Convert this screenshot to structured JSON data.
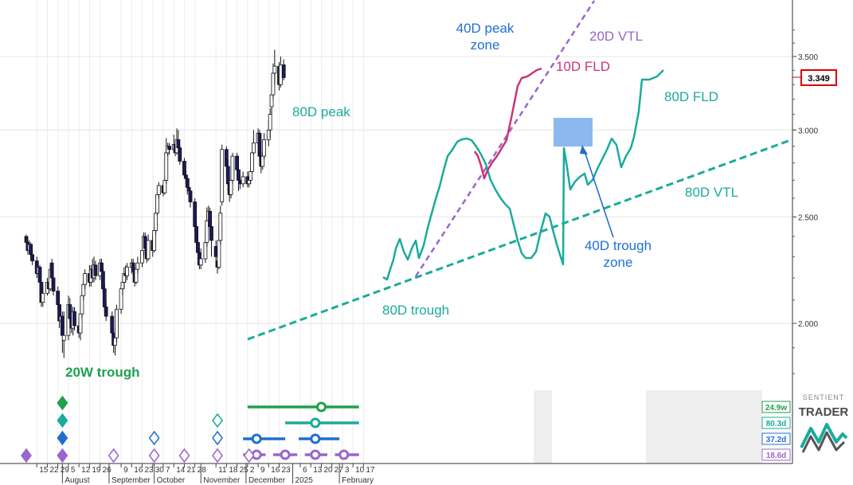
{
  "chart_data": {
    "type": "candlestick",
    "y_axis": {
      "scale": "log",
      "ticks": [
        "2.000",
        "2.500",
        "3.000",
        "3.500"
      ],
      "tick_values": [
        2.0,
        2.5,
        3.0,
        3.5
      ],
      "range": [
        1.72,
        4.0
      ]
    },
    "last_price": "3.349",
    "last_price_value": 3.349,
    "x_axis": {
      "day_ticks": [
        {
          "label": "15",
          "date": "2024-07-15"
        },
        {
          "label": "22",
          "date": "2024-07-22"
        },
        {
          "label": "29",
          "date": "2024-07-29"
        },
        {
          "label": "5",
          "date": "2024-08-05"
        },
        {
          "label": "12",
          "date": "2024-08-12"
        },
        {
          "label": "19",
          "date": "2024-08-19"
        },
        {
          "label": "26",
          "date": "2024-08-26"
        },
        {
          "label": "9",
          "date": "2024-09-09"
        },
        {
          "label": "16",
          "date": "2024-09-16"
        },
        {
          "label": "23",
          "date": "2024-09-23"
        },
        {
          "label": "30",
          "date": "2024-09-30"
        },
        {
          "label": "7",
          "date": "2024-10-07"
        },
        {
          "label": "14",
          "date": "2024-10-14"
        },
        {
          "label": "21",
          "date": "2024-10-21"
        },
        {
          "label": "28",
          "date": "2024-10-28"
        },
        {
          "label": "11",
          "date": "2024-11-11"
        },
        {
          "label": "18",
          "date": "2024-11-18"
        },
        {
          "label": "25",
          "date": "2024-11-25"
        },
        {
          "label": "2",
          "date": "2024-12-02"
        },
        {
          "label": "9",
          "date": "2024-12-09"
        },
        {
          "label": "16",
          "date": "2024-12-16"
        },
        {
          "label": "23",
          "date": "2024-12-23"
        },
        {
          "label": "6",
          "date": "2025-01-06"
        },
        {
          "label": "13",
          "date": "2025-01-13"
        },
        {
          "label": "20",
          "date": "2025-01-20"
        },
        {
          "label": "27",
          "date": "2025-01-27"
        },
        {
          "label": "3",
          "date": "2025-02-03"
        },
        {
          "label": "10",
          "date": "2025-02-10"
        },
        {
          "label": "17",
          "date": "2025-02-17"
        }
      ],
      "month_ticks": [
        {
          "label": "August",
          "date": "2024-08-01"
        },
        {
          "label": "September",
          "date": "2024-09-01"
        },
        {
          "label": "October",
          "date": "2024-10-01"
        },
        {
          "label": "November",
          "date": "2024-11-01"
        },
        {
          "label": "December",
          "date": "2024-12-01"
        },
        {
          "label": "2025",
          "date": "2025-01-01"
        },
        {
          "label": "February",
          "date": "2025-02-01"
        }
      ]
    },
    "candles": [
      [
        "2024-07-08",
        2.4,
        2.37,
        2.41,
        2.35
      ],
      [
        "2024-07-09",
        2.37,
        2.33,
        2.39,
        2.31
      ],
      [
        "2024-07-10",
        2.33,
        2.36,
        2.38,
        2.32
      ],
      [
        "2024-07-11",
        2.36,
        2.31,
        2.37,
        2.29
      ],
      [
        "2024-07-12",
        2.31,
        2.28,
        2.33,
        2.26
      ],
      [
        "2024-07-15",
        2.28,
        2.22,
        2.3,
        2.2
      ],
      [
        "2024-07-16",
        2.22,
        2.25,
        2.27,
        2.2
      ],
      [
        "2024-07-17",
        2.25,
        2.18,
        2.26,
        2.15
      ],
      [
        "2024-07-18",
        2.18,
        2.09,
        2.19,
        2.07
      ],
      [
        "2024-07-19",
        2.09,
        2.13,
        2.16,
        2.07
      ],
      [
        "2024-07-22",
        2.13,
        2.18,
        2.2,
        2.12
      ],
      [
        "2024-07-23",
        2.18,
        2.15,
        2.21,
        2.13
      ],
      [
        "2024-07-24",
        2.15,
        2.24,
        2.27,
        2.14
      ],
      [
        "2024-07-25",
        2.27,
        2.2,
        2.29,
        2.18
      ],
      [
        "2024-07-26",
        2.2,
        2.14,
        2.22,
        2.12
      ],
      [
        "2024-07-29",
        2.14,
        2.08,
        2.16,
        2.06
      ],
      [
        "2024-07-30",
        2.08,
        2.01,
        2.09,
        1.98
      ],
      [
        "2024-07-31",
        2.01,
        2.03,
        2.06,
        1.99
      ],
      [
        "2024-08-01",
        2.03,
        1.95,
        2.05,
        1.88
      ],
      [
        "2024-08-02",
        1.93,
        1.95,
        2.05,
        1.86
      ],
      [
        "2024-08-05",
        1.95,
        2.08,
        2.12,
        1.93
      ],
      [
        "2024-08-06",
        2.08,
        2.02,
        2.11,
        2.0
      ],
      [
        "2024-08-07",
        2.02,
        1.98,
        2.05,
        1.96
      ],
      [
        "2024-08-08",
        1.98,
        2.05,
        2.07,
        1.95
      ],
      [
        "2024-08-09",
        2.05,
        1.99,
        2.07,
        1.97
      ],
      [
        "2024-08-12",
        1.99,
        1.96,
        2.01,
        1.94
      ],
      [
        "2024-08-13",
        1.96,
        2.04,
        2.06,
        1.93
      ],
      [
        "2024-08-14",
        2.04,
        2.12,
        2.14,
        2.02
      ],
      [
        "2024-08-15",
        2.12,
        2.17,
        2.19,
        2.1
      ],
      [
        "2024-08-16",
        2.17,
        2.22,
        2.24,
        2.15
      ],
      [
        "2024-08-19",
        2.22,
        2.18,
        2.26,
        2.16
      ],
      [
        "2024-08-20",
        2.18,
        2.24,
        2.26,
        2.16
      ],
      [
        "2024-08-21",
        2.24,
        2.2,
        2.29,
        2.18
      ],
      [
        "2024-08-22",
        2.2,
        2.26,
        2.3,
        2.18
      ],
      [
        "2024-08-23",
        2.26,
        2.21,
        2.28,
        2.19
      ],
      [
        "2024-08-26",
        2.21,
        2.27,
        2.29,
        2.19
      ],
      [
        "2024-08-27",
        2.27,
        2.23,
        2.29,
        2.21
      ],
      [
        "2024-08-28",
        2.23,
        2.15,
        2.25,
        2.13
      ],
      [
        "2024-08-29",
        2.15,
        2.07,
        2.17,
        2.05
      ],
      [
        "2024-08-30",
        2.07,
        2.03,
        2.09,
        2.01
      ],
      [
        "2024-09-03",
        2.03,
        1.96,
        2.05,
        1.94
      ],
      [
        "2024-09-04",
        1.96,
        1.91,
        1.98,
        1.88
      ],
      [
        "2024-09-05",
        1.91,
        1.94,
        1.96,
        1.87
      ],
      [
        "2024-09-06",
        1.94,
        2.06,
        2.08,
        1.92
      ],
      [
        "2024-09-09",
        2.06,
        2.15,
        2.17,
        2.04
      ],
      [
        "2024-09-10",
        2.15,
        2.18,
        2.2,
        2.12
      ],
      [
        "2024-09-11",
        2.18,
        2.22,
        2.25,
        2.15
      ],
      [
        "2024-09-12",
        2.22,
        2.21,
        2.26,
        2.18
      ],
      [
        "2024-09-13",
        2.21,
        2.25,
        2.27,
        2.19
      ],
      [
        "2024-09-16",
        2.25,
        2.27,
        2.29,
        2.22
      ],
      [
        "2024-09-17",
        2.27,
        2.23,
        2.29,
        2.21
      ],
      [
        "2024-09-18",
        2.23,
        2.18,
        2.25,
        2.16
      ],
      [
        "2024-09-19",
        2.18,
        2.24,
        2.26,
        2.17
      ],
      [
        "2024-09-20",
        2.24,
        2.27,
        2.3,
        2.22
      ],
      [
        "2024-09-23",
        2.27,
        2.33,
        2.35,
        2.25
      ],
      [
        "2024-09-24",
        2.33,
        2.4,
        2.42,
        2.3
      ],
      [
        "2024-09-25",
        2.4,
        2.34,
        2.42,
        2.31
      ],
      [
        "2024-09-26",
        2.34,
        2.29,
        2.36,
        2.27
      ],
      [
        "2024-09-27",
        2.29,
        2.38,
        2.41,
        2.28
      ],
      [
        "2024-09-30",
        2.38,
        2.33,
        2.4,
        2.3
      ],
      [
        "2024-10-01",
        2.33,
        2.43,
        2.45,
        2.32
      ],
      [
        "2024-10-02",
        2.43,
        2.52,
        2.56,
        2.41
      ],
      [
        "2024-10-03",
        2.52,
        2.62,
        2.67,
        2.51
      ],
      [
        "2024-10-04",
        2.62,
        2.67,
        2.69,
        2.6
      ],
      [
        "2024-10-07",
        2.67,
        2.63,
        2.7,
        2.61
      ],
      [
        "2024-10-08",
        2.63,
        2.7,
        2.73,
        2.62
      ],
      [
        "2024-10-09",
        2.7,
        2.86,
        2.95,
        2.68
      ],
      [
        "2024-10-10",
        2.86,
        2.9,
        2.92,
        2.84
      ],
      [
        "2024-10-11",
        2.9,
        2.88,
        2.92,
        2.85
      ],
      [
        "2024-10-14",
        2.88,
        2.91,
        2.97,
        2.86
      ],
      [
        "2024-10-15",
        2.91,
        2.86,
        2.93,
        2.84
      ],
      [
        "2024-10-16",
        2.86,
        2.94,
        3.01,
        2.85
      ],
      [
        "2024-10-17",
        2.94,
        2.89,
        3.0,
        2.86
      ],
      [
        "2024-10-18",
        2.89,
        2.81,
        2.91,
        2.79
      ],
      [
        "2024-10-21",
        2.81,
        2.73,
        2.83,
        2.71
      ],
      [
        "2024-10-22",
        2.73,
        2.71,
        2.76,
        2.68
      ],
      [
        "2024-10-23",
        2.71,
        2.66,
        2.73,
        2.62
      ],
      [
        "2024-10-24",
        2.66,
        2.64,
        2.71,
        2.6
      ],
      [
        "2024-10-25",
        2.64,
        2.58,
        2.66,
        2.55
      ],
      [
        "2024-10-28",
        2.58,
        2.45,
        2.6,
        2.42
      ],
      [
        "2024-10-29",
        2.45,
        2.37,
        2.47,
        2.35
      ],
      [
        "2024-10-30",
        2.37,
        2.32,
        2.4,
        2.28
      ],
      [
        "2024-10-31",
        2.32,
        2.26,
        2.34,
        2.24
      ],
      [
        "2024-11-01",
        2.26,
        2.29,
        2.34,
        2.24
      ],
      [
        "2024-11-04",
        2.29,
        2.37,
        2.43,
        2.27
      ],
      [
        "2024-11-05",
        2.37,
        2.48,
        2.55,
        2.35
      ],
      [
        "2024-11-06",
        2.48,
        2.53,
        2.56,
        2.45
      ],
      [
        "2024-11-07",
        2.53,
        2.45,
        2.55,
        2.4
      ],
      [
        "2024-11-08",
        2.45,
        2.38,
        2.48,
        2.3
      ],
      [
        "2024-11-11",
        2.35,
        2.3,
        2.38,
        2.25
      ],
      [
        "2024-11-12",
        2.28,
        2.25,
        2.32,
        2.22
      ],
      [
        "2024-11-13",
        2.25,
        2.38,
        2.45,
        2.24
      ],
      [
        "2024-11-14",
        2.38,
        2.52,
        2.56,
        2.36
      ],
      [
        "2024-11-15",
        2.58,
        2.88,
        2.91,
        2.56
      ],
      [
        "2024-11-18",
        2.88,
        2.78,
        2.9,
        2.72
      ],
      [
        "2024-11-19",
        2.78,
        2.68,
        2.82,
        2.64
      ],
      [
        "2024-11-20",
        2.68,
        2.62,
        2.7,
        2.58
      ],
      [
        "2024-11-21",
        2.62,
        2.7,
        2.78,
        2.6
      ],
      [
        "2024-11-22",
        2.7,
        2.84,
        2.86,
        2.68
      ],
      [
        "2024-11-25",
        2.84,
        2.76,
        2.86,
        2.7
      ],
      [
        "2024-11-26",
        2.76,
        2.7,
        2.78,
        2.64
      ],
      [
        "2024-11-27",
        2.7,
        2.68,
        2.73,
        2.65
      ],
      [
        "2024-11-29",
        2.68,
        2.72,
        2.75,
        2.66
      ],
      [
        "2024-12-02",
        2.72,
        2.68,
        2.75,
        2.66
      ],
      [
        "2024-12-03",
        2.68,
        2.7,
        2.73,
        2.66
      ],
      [
        "2024-12-04",
        2.7,
        2.75,
        2.77,
        2.68
      ],
      [
        "2024-12-05",
        2.75,
        2.86,
        2.9,
        2.74
      ],
      [
        "2024-12-06",
        2.86,
        2.92,
        3.0,
        2.85
      ],
      [
        "2024-12-09",
        2.92,
        2.98,
        3.01,
        2.9
      ],
      [
        "2024-12-10",
        2.98,
        2.84,
        3.0,
        2.8
      ],
      [
        "2024-12-11",
        2.84,
        2.78,
        2.87,
        2.74
      ],
      [
        "2024-12-12",
        2.78,
        2.84,
        2.86,
        2.76
      ],
      [
        "2024-12-13",
        2.84,
        2.94,
        2.98,
        2.82
      ],
      [
        "2024-12-16",
        2.94,
        3.0,
        3.06,
        2.9
      ],
      [
        "2024-12-17",
        3.0,
        3.1,
        3.14,
        2.95
      ],
      [
        "2024-12-18",
        3.15,
        3.23,
        3.36,
        3.1
      ],
      [
        "2024-12-19",
        3.23,
        3.38,
        3.45,
        3.2
      ],
      [
        "2024-12-20",
        3.38,
        3.43,
        3.55,
        3.3
      ],
      [
        "2024-12-23",
        3.43,
        3.3,
        3.46,
        3.26
      ],
      [
        "2024-12-24",
        3.3,
        3.44,
        3.5,
        3.28
      ],
      [
        "2024-12-26",
        3.44,
        3.349,
        3.48,
        3.33
      ]
    ],
    "cycle_lines": [
      {
        "label": "24.9w",
        "color": "#1ea14e",
        "segments": [
          [
            "2024-12-02",
            "2025-02-14"
          ]
        ],
        "markers": [
          "2025-01-20"
        ]
      },
      {
        "label": "80.3d",
        "color": "#1aab9b",
        "segments": [
          [
            "2024-12-27",
            "2025-02-14"
          ]
        ],
        "markers": [
          "2025-01-16"
        ]
      },
      {
        "label": "37.2d",
        "color": "#1f6fd1",
        "segments": [
          [
            "2024-11-29",
            "2024-12-27"
          ],
          [
            "2025-01-05",
            "2025-02-01"
          ]
        ],
        "markers": [
          "2024-12-08",
          "2025-01-16"
        ]
      },
      {
        "label": "18.6d",
        "color": "#9966cc",
        "segments": [
          [
            "2024-11-29",
            "2024-12-14"
          ],
          [
            "2024-12-19",
            "2025-01-04"
          ],
          [
            "2025-01-09",
            "2025-01-24"
          ],
          [
            "2025-01-29",
            "2025-02-14"
          ]
        ],
        "markers": [
          "2024-12-08",
          "2024-12-27",
          "2025-01-16",
          "2025-02-04"
        ]
      }
    ],
    "cycle_marker_columns": [
      {
        "date": "2024-07-08",
        "diamonds": [
          "#9966cc"
        ],
        "filled": true
      },
      {
        "date": "2024-08-01",
        "diamonds": [
          "#9966cc",
          "#1f6fd1",
          "#1aab9b",
          "#1ea14e"
        ],
        "filled": true
      },
      {
        "date": "2024-09-04",
        "diamonds": [
          "#9966cc"
        ],
        "filled": false
      },
      {
        "date": "2024-10-01",
        "diamonds": [
          "#9966cc",
          "#1f6fd1"
        ],
        "filled": false
      },
      {
        "date": "2024-10-21",
        "diamonds": [
          "#9966cc"
        ],
        "filled": false
      },
      {
        "date": "2024-11-12",
        "diamonds": [
          "#9966cc",
          "#1f6fd1",
          "#1aab9b"
        ],
        "filled": false
      },
      {
        "date": "2024-12-03",
        "diamonds": [
          "#9966cc"
        ],
        "filled": false
      }
    ],
    "annotations": {
      "trough_20w": "20W trough",
      "peak_80d": "80D peak",
      "peak_40d_line1": "40D peak",
      "peak_40d_line2": "zone",
      "vtl_20d": "20D VTL",
      "fld_10d": "10D FLD",
      "fld_80d": "80D FLD",
      "vtl_80d": "80D VTL",
      "trough_40d_line1": "40D trough",
      "trough_40d_line2": "zone",
      "trough_80d": "80D trough"
    },
    "colors": {
      "up": "#ffffff",
      "down": "#1a1a5e",
      "teal": "#1aab9b",
      "purple": "#9966cc",
      "pink": "#cc3377",
      "blue": "#1f6fd1",
      "green": "#1ea14e",
      "box": "#7fb0ee"
    }
  },
  "logo": {
    "line1": "SENTIENT",
    "line2": "TRADER"
  }
}
